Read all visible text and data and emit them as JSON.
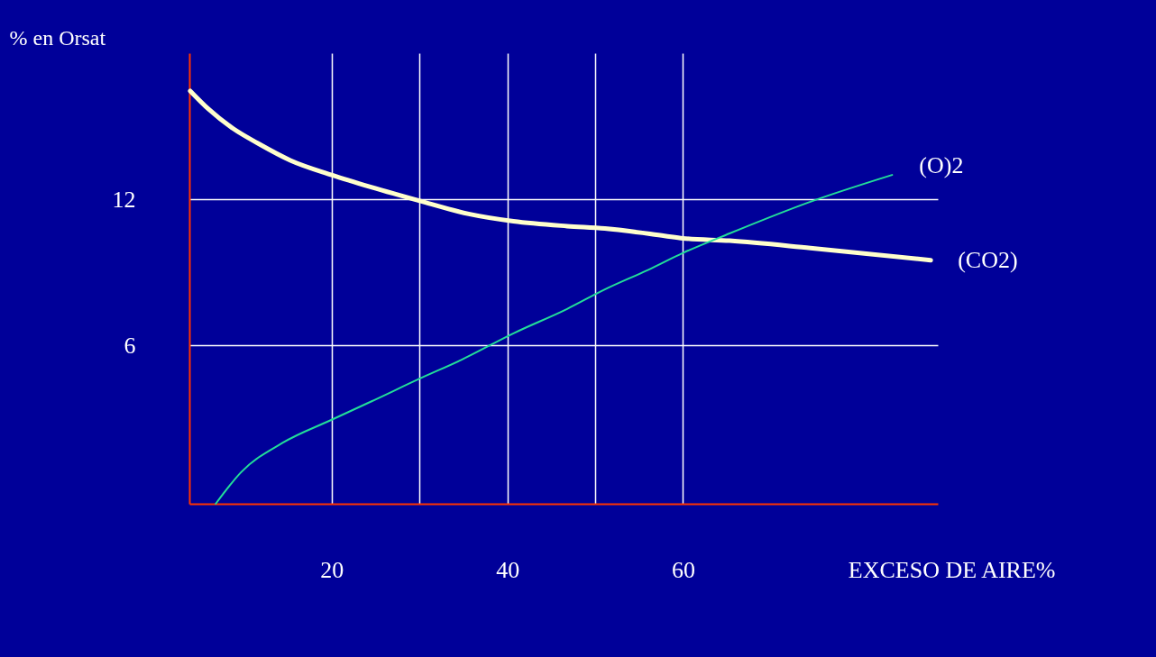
{
  "chart_data": {
    "type": "line",
    "ylabel": "% en Orsat",
    "xlabel": "EXCESO DE AIRE%",
    "xlim": [
      3.8,
      89
    ],
    "ylim": [
      -0.5,
      18
    ],
    "xticks": [
      20,
      {
        "value": 30,
        "label": null
      },
      40,
      {
        "value": 50,
        "label": null
      },
      60
    ],
    "yticks": [
      6,
      12
    ],
    "grid": true,
    "line_style": "solid",
    "series": [
      {
        "name": "(CO2)",
        "color": "#ffffcc",
        "x": [
          3.9,
          6.0,
          8.8,
          11.6,
          15.3,
          20,
          24.5,
          30.4,
          35.6,
          40.7,
          46.8,
          51.1,
          57.9,
          60,
          65.3,
          74.5,
          88.2
        ],
        "values": [
          16.45,
          15.7,
          14.9,
          14.3,
          13.6,
          13.0,
          12.5,
          11.9,
          11.4,
          11.1,
          10.9,
          10.8,
          10.5,
          10.4,
          10.3,
          10.0,
          9.5
        ]
      },
      {
        "name": "(O)2",
        "color": "#22dd99",
        "x": [
          6.8,
          9.7,
          14.4,
          20,
          24.5,
          30.4,
          34.7,
          40.7,
          46.8,
          51.1,
          56.0,
          60,
          65.3,
          74.5,
          83.8
        ],
        "values": [
          -0.5,
          0.8,
          2.0,
          2.95,
          3.7,
          4.7,
          5.4,
          6.5,
          7.5,
          8.3,
          9.1,
          9.8,
          10.6,
          11.9,
          13.0
        ]
      }
    ]
  }
}
